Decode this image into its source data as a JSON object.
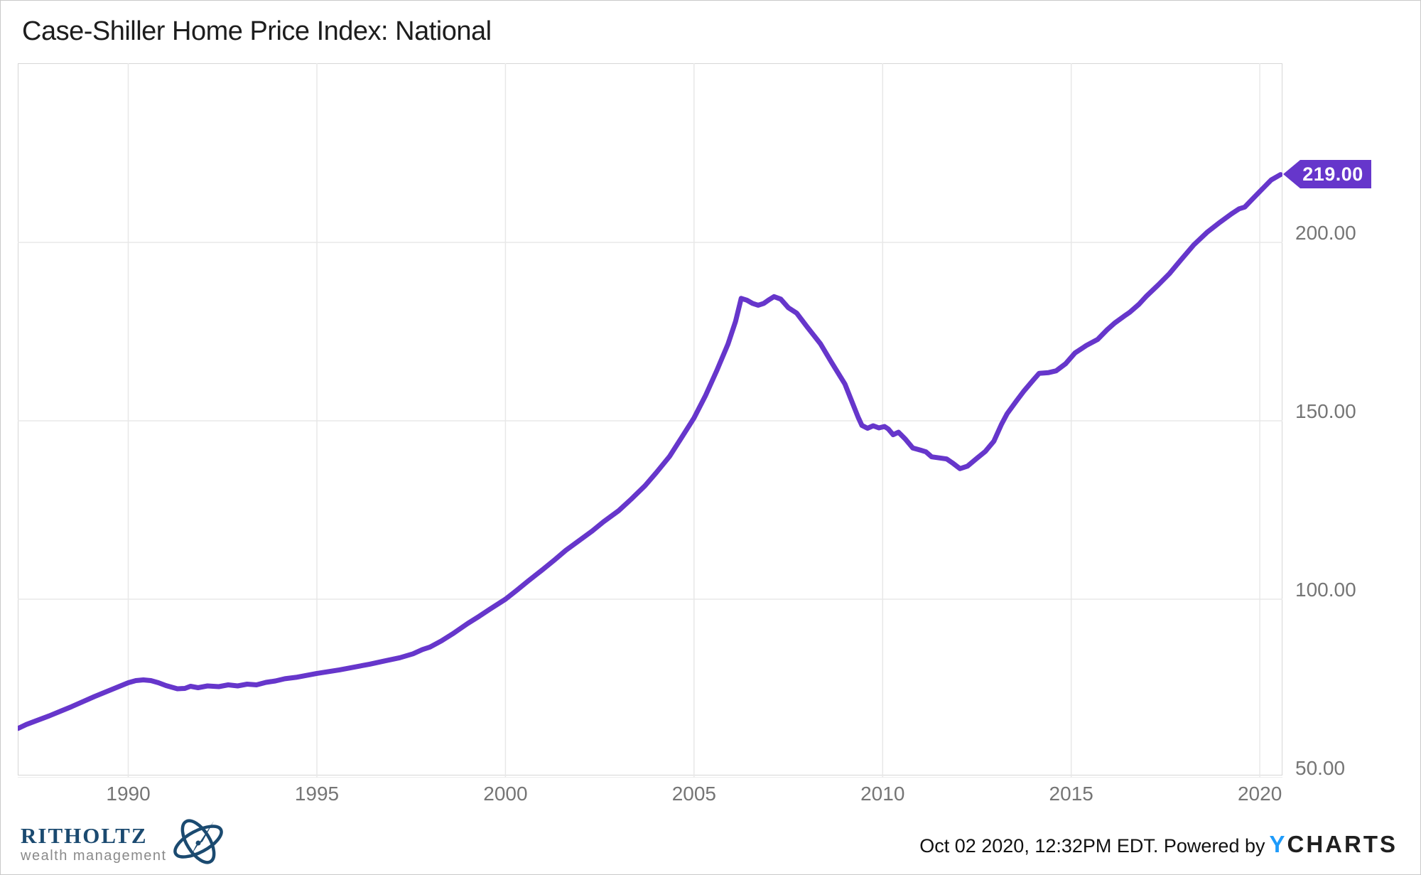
{
  "title": "Case-Shiller Home Price Index: National",
  "last_value_label": "219.00",
  "footer": {
    "brand_name": "RITHOLTZ",
    "brand_sub": "wealth management",
    "timestamp": "Oct 02 2020, 12:32PM EDT. Powered by",
    "ycharts_y": "Y",
    "ycharts_rest": "CHARTS"
  },
  "colors": {
    "line": "#6636CB",
    "tag_bg": "#6636CB",
    "tag_text": "#ffffff",
    "grid": "#e8e8e8",
    "plot_border": "#d6d6d6",
    "axis_label": "#757575",
    "brand_navy": "#1b4a70",
    "brand_gray": "#8a8a8a",
    "ycharts_blue": "#1E9BFA"
  },
  "chart_data": {
    "type": "line",
    "title": "Case-Shiller Home Price Index: National",
    "xlabel": "",
    "ylabel": "",
    "grid": true,
    "legend": "none",
    "xlim": [
      1987.07,
      2020.6
    ],
    "ylim": [
      50,
      250.2
    ],
    "x_ticks": [
      1990,
      1995,
      2000,
      2005,
      2010,
      2015,
      2020
    ],
    "x_tick_labels": [
      "1990",
      "1995",
      "2000",
      "2005",
      "2010",
      "2015",
      "2020"
    ],
    "y_ticks": [
      200,
      150,
      100,
      50
    ],
    "y_tick_labels": [
      "200.00",
      "150.00",
      "100.00",
      "50.00"
    ],
    "last_value": 219.0,
    "series": [
      {
        "name": "Case-Shiller Home Price Index: National",
        "points": [
          [
            1987.08,
            63.8
          ],
          [
            1987.3,
            64.9
          ],
          [
            1987.6,
            66.1
          ],
          [
            1987.9,
            67.3
          ],
          [
            1988.2,
            68.6
          ],
          [
            1988.5,
            69.9
          ],
          [
            1988.8,
            71.3
          ],
          [
            1989.1,
            72.7
          ],
          [
            1989.4,
            74.0
          ],
          [
            1989.7,
            75.3
          ],
          [
            1990.0,
            76.6
          ],
          [
            1990.2,
            77.2
          ],
          [
            1990.4,
            77.4
          ],
          [
            1990.6,
            77.2
          ],
          [
            1990.8,
            76.6
          ],
          [
            1991.0,
            75.8
          ],
          [
            1991.3,
            74.9
          ],
          [
            1991.5,
            75.0
          ],
          [
            1991.65,
            75.6
          ],
          [
            1991.85,
            75.2
          ],
          [
            1992.1,
            75.7
          ],
          [
            1992.4,
            75.5
          ],
          [
            1992.65,
            76.0
          ],
          [
            1992.9,
            75.7
          ],
          [
            1993.15,
            76.2
          ],
          [
            1993.4,
            76.0
          ],
          [
            1993.65,
            76.7
          ],
          [
            1993.9,
            77.1
          ],
          [
            1994.15,
            77.7
          ],
          [
            1994.45,
            78.1
          ],
          [
            1994.75,
            78.7
          ],
          [
            1995.0,
            79.2
          ],
          [
            1995.3,
            79.7
          ],
          [
            1995.6,
            80.2
          ],
          [
            1996.0,
            81.0
          ],
          [
            1996.4,
            81.8
          ],
          [
            1996.8,
            82.7
          ],
          [
            1997.2,
            83.6
          ],
          [
            1997.55,
            84.7
          ],
          [
            1997.8,
            85.9
          ],
          [
            1998.0,
            86.6
          ],
          [
            1998.3,
            88.3
          ],
          [
            1998.6,
            90.3
          ],
          [
            1999.0,
            93.2
          ],
          [
            1999.3,
            95.2
          ],
          [
            1999.6,
            97.3
          ],
          [
            2000.0,
            100.0
          ],
          [
            2000.3,
            102.5
          ],
          [
            2000.6,
            105.1
          ],
          [
            2001.0,
            108.4
          ],
          [
            2001.3,
            111.0
          ],
          [
            2001.6,
            113.7
          ],
          [
            2002.0,
            116.8
          ],
          [
            2002.3,
            119.1
          ],
          [
            2002.6,
            121.7
          ],
          [
            2003.0,
            124.8
          ],
          [
            2003.35,
            128.2
          ],
          [
            2003.7,
            131.8
          ],
          [
            2004.0,
            135.5
          ],
          [
            2004.35,
            140.0
          ],
          [
            2004.7,
            145.8
          ],
          [
            2005.0,
            150.8
          ],
          [
            2005.3,
            157.0
          ],
          [
            2005.6,
            164.0
          ],
          [
            2005.9,
            171.5
          ],
          [
            2006.1,
            177.8
          ],
          [
            2006.25,
            184.3
          ],
          [
            2006.4,
            183.8
          ],
          [
            2006.55,
            182.9
          ],
          [
            2006.7,
            182.4
          ],
          [
            2006.85,
            182.9
          ],
          [
            2007.0,
            184.0
          ],
          [
            2007.12,
            184.8
          ],
          [
            2007.3,
            184.1
          ],
          [
            2007.5,
            181.7
          ],
          [
            2007.72,
            180.2
          ],
          [
            2008.0,
            176.3
          ],
          [
            2008.35,
            171.6
          ],
          [
            2008.65,
            166.3
          ],
          [
            2009.0,
            160.3
          ],
          [
            2009.2,
            155.0
          ],
          [
            2009.35,
            151.0
          ],
          [
            2009.45,
            148.7
          ],
          [
            2009.6,
            147.9
          ],
          [
            2009.75,
            148.6
          ],
          [
            2009.9,
            148.0
          ],
          [
            2010.05,
            148.4
          ],
          [
            2010.15,
            147.7
          ],
          [
            2010.28,
            146.1
          ],
          [
            2010.42,
            146.8
          ],
          [
            2010.6,
            144.9
          ],
          [
            2010.8,
            142.4
          ],
          [
            2011.0,
            141.8
          ],
          [
            2011.15,
            141.3
          ],
          [
            2011.3,
            139.9
          ],
          [
            2011.5,
            139.6
          ],
          [
            2011.7,
            139.3
          ],
          [
            2011.85,
            138.2
          ],
          [
            2012.05,
            136.6
          ],
          [
            2012.25,
            137.3
          ],
          [
            2012.5,
            139.5
          ],
          [
            2012.72,
            141.4
          ],
          [
            2012.95,
            144.3
          ],
          [
            2013.15,
            149.0
          ],
          [
            2013.3,
            152.0
          ],
          [
            2013.55,
            155.6
          ],
          [
            2013.75,
            158.4
          ],
          [
            2014.0,
            161.5
          ],
          [
            2014.15,
            163.3
          ],
          [
            2014.4,
            163.5
          ],
          [
            2014.6,
            164.0
          ],
          [
            2014.85,
            166.0
          ],
          [
            2015.1,
            169.0
          ],
          [
            2015.4,
            171.1
          ],
          [
            2015.7,
            172.8
          ],
          [
            2015.95,
            175.5
          ],
          [
            2016.15,
            177.4
          ],
          [
            2016.4,
            179.3
          ],
          [
            2016.55,
            180.4
          ],
          [
            2016.8,
            182.7
          ],
          [
            2017.0,
            185.0
          ],
          [
            2017.3,
            188.0
          ],
          [
            2017.6,
            191.2
          ],
          [
            2017.9,
            195.0
          ],
          [
            2018.25,
            199.3
          ],
          [
            2018.6,
            202.8
          ],
          [
            2018.95,
            205.7
          ],
          [
            2019.25,
            208.0
          ],
          [
            2019.45,
            209.4
          ],
          [
            2019.6,
            209.9
          ],
          [
            2019.8,
            212.1
          ],
          [
            2020.05,
            214.8
          ],
          [
            2020.3,
            217.5
          ],
          [
            2020.55,
            219.0
          ]
        ]
      }
    ]
  }
}
